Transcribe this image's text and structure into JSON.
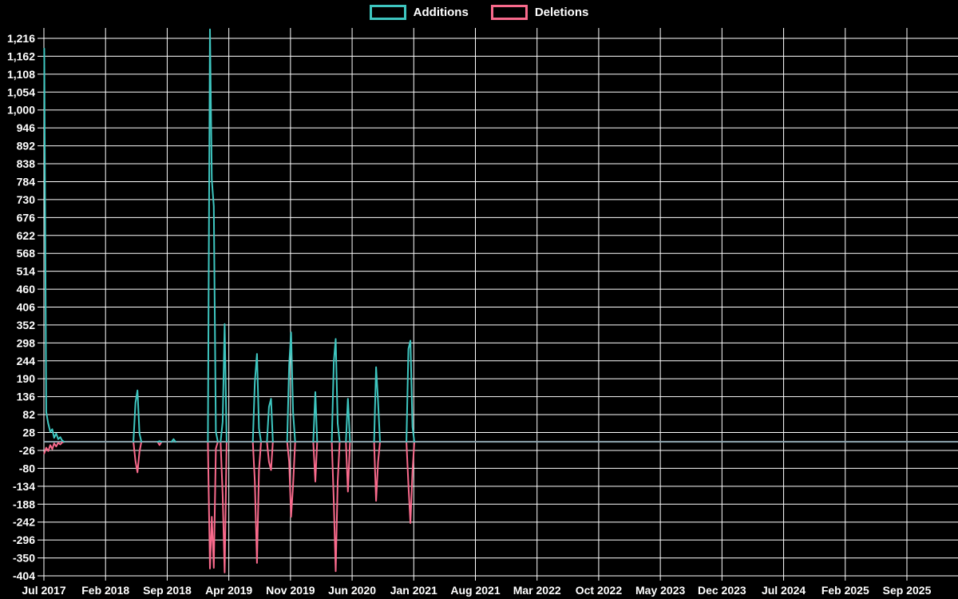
{
  "legend": {
    "items": [
      {
        "label": "Additions",
        "color": "#3ec6c0"
      },
      {
        "label": "Deletions",
        "color": "#f96a8c"
      }
    ]
  },
  "chart_data": {
    "type": "line",
    "title": "",
    "xlabel": "",
    "ylabel": "",
    "background": "#000000",
    "grid_color": "#ffffff",
    "zero_line_color": "#8fa6b0",
    "legend_position": "top-center",
    "y_axis": {
      "max": 1216,
      "min": -404,
      "interval": 54,
      "tick_labels": [
        "1,216",
        "1,162",
        "1,108",
        "1,054",
        "1,000",
        "946",
        "892",
        "838",
        "784",
        "730",
        "676",
        "622",
        "568",
        "514",
        "460",
        "406",
        "352",
        "298",
        "244",
        "190",
        "136",
        "82",
        "28",
        "-26",
        "-80",
        "-134",
        "-188",
        "-242",
        "-296",
        "-350",
        "-404"
      ]
    },
    "x_axis": {
      "start_month": "2017-07",
      "tick_interval_months": 7,
      "tick_labels": [
        "Jul 2017",
        "Feb 2018",
        "Sep 2018",
        "Apr 2019",
        "Nov 2019",
        "Jun 2020",
        "Jan 2021",
        "Aug 2021",
        "Mar 2022",
        "Oct 2022",
        "May 2023",
        "Dec 2023",
        "Jul 2024",
        "Feb 2025",
        "Sep 2025"
      ]
    },
    "series": [
      {
        "name": "Additions",
        "color": "#3ec6c0",
        "column": 1
      },
      {
        "name": "Deletions",
        "color": "#f96a8c",
        "column": 2
      }
    ],
    "points": [
      [
        "2017-07-02",
        1185,
        -35
      ],
      [
        "2017-07-09",
        90,
        -18
      ],
      [
        "2017-07-16",
        55,
        -28
      ],
      [
        "2017-07-23",
        30,
        -10
      ],
      [
        "2017-07-30",
        38,
        -22
      ],
      [
        "2017-08-06",
        12,
        -5
      ],
      [
        "2017-08-13",
        25,
        -14
      ],
      [
        "2017-08-20",
        8,
        -3
      ],
      [
        "2017-08-27",
        14,
        -8
      ],
      [
        "2017-09-03",
        4,
        -2
      ],
      [
        "2017-09-10",
        0,
        0
      ],
      [
        "2017-09-17",
        0,
        0
      ],
      [
        "2018-05-06",
        0,
        0
      ],
      [
        "2018-05-13",
        118,
        -58
      ],
      [
        "2018-05-20",
        155,
        -92
      ],
      [
        "2018-05-27",
        25,
        -30
      ],
      [
        "2018-06-03",
        0,
        0
      ],
      [
        "2018-06-10",
        0,
        0
      ],
      [
        "2018-07-29",
        0,
        0
      ],
      [
        "2018-08-05",
        2,
        -10
      ],
      [
        "2018-08-12",
        0,
        0
      ],
      [
        "2018-08-19",
        0,
        0
      ],
      [
        "2018-09-16",
        0,
        0
      ],
      [
        "2018-09-23",
        8,
        0
      ],
      [
        "2018-09-30",
        0,
        0
      ],
      [
        "2018-10-07",
        0,
        0
      ],
      [
        "2019-01-20",
        0,
        0
      ],
      [
        "2019-01-27",
        1243,
        -382
      ],
      [
        "2019-02-03",
        790,
        -226
      ],
      [
        "2019-02-10",
        710,
        -380
      ],
      [
        "2019-02-17",
        30,
        -20
      ],
      [
        "2019-02-24",
        0,
        0
      ],
      [
        "2019-03-03",
        0,
        0
      ],
      [
        "2019-03-10",
        60,
        -160
      ],
      [
        "2019-03-17",
        355,
        -394
      ],
      [
        "2019-03-24",
        0,
        0
      ],
      [
        "2019-03-31",
        0,
        0
      ],
      [
        "2019-06-23",
        0,
        0
      ],
      [
        "2019-06-30",
        180,
        -120
      ],
      [
        "2019-07-07",
        265,
        -365
      ],
      [
        "2019-07-14",
        40,
        -85
      ],
      [
        "2019-07-21",
        0,
        0
      ],
      [
        "2019-07-28",
        0,
        0
      ],
      [
        "2019-08-11",
        0,
        0
      ],
      [
        "2019-08-18",
        105,
        -60
      ],
      [
        "2019-08-25",
        130,
        -85
      ],
      [
        "2019-09-01",
        0,
        0
      ],
      [
        "2019-09-08",
        0,
        0
      ],
      [
        "2019-10-20",
        0,
        0
      ],
      [
        "2019-10-27",
        230,
        -60
      ],
      [
        "2019-11-03",
        330,
        -226
      ],
      [
        "2019-11-10",
        90,
        -130
      ],
      [
        "2019-11-17",
        0,
        0
      ],
      [
        "2019-11-24",
        0,
        0
      ],
      [
        "2020-01-19",
        0,
        0
      ],
      [
        "2020-01-26",
        150,
        -120
      ],
      [
        "2020-02-02",
        0,
        0
      ],
      [
        "2020-02-09",
        0,
        0
      ],
      [
        "2020-03-22",
        0,
        0
      ],
      [
        "2020-03-29",
        240,
        -180
      ],
      [
        "2020-04-05",
        310,
        -390
      ],
      [
        "2020-04-12",
        55,
        -120
      ],
      [
        "2020-04-19",
        0,
        0
      ],
      [
        "2020-04-26",
        0,
        0
      ],
      [
        "2020-05-10",
        0,
        0
      ],
      [
        "2020-05-17",
        130,
        -150
      ],
      [
        "2020-05-24",
        0,
        0
      ],
      [
        "2020-05-31",
        0,
        0
      ],
      [
        "2020-08-16",
        0,
        0
      ],
      [
        "2020-08-23",
        225,
        -178
      ],
      [
        "2020-08-30",
        120,
        -60
      ],
      [
        "2020-09-06",
        0,
        0
      ],
      [
        "2020-09-13",
        0,
        0
      ],
      [
        "2020-12-06",
        0,
        0
      ],
      [
        "2020-12-13",
        280,
        -130
      ],
      [
        "2020-12-20",
        305,
        -245
      ],
      [
        "2020-12-27",
        45,
        -90
      ],
      [
        "2021-01-03",
        0,
        0
      ],
      [
        "2021-01-10",
        0,
        0
      ],
      [
        "2026-03-01",
        0,
        0
      ]
    ]
  }
}
